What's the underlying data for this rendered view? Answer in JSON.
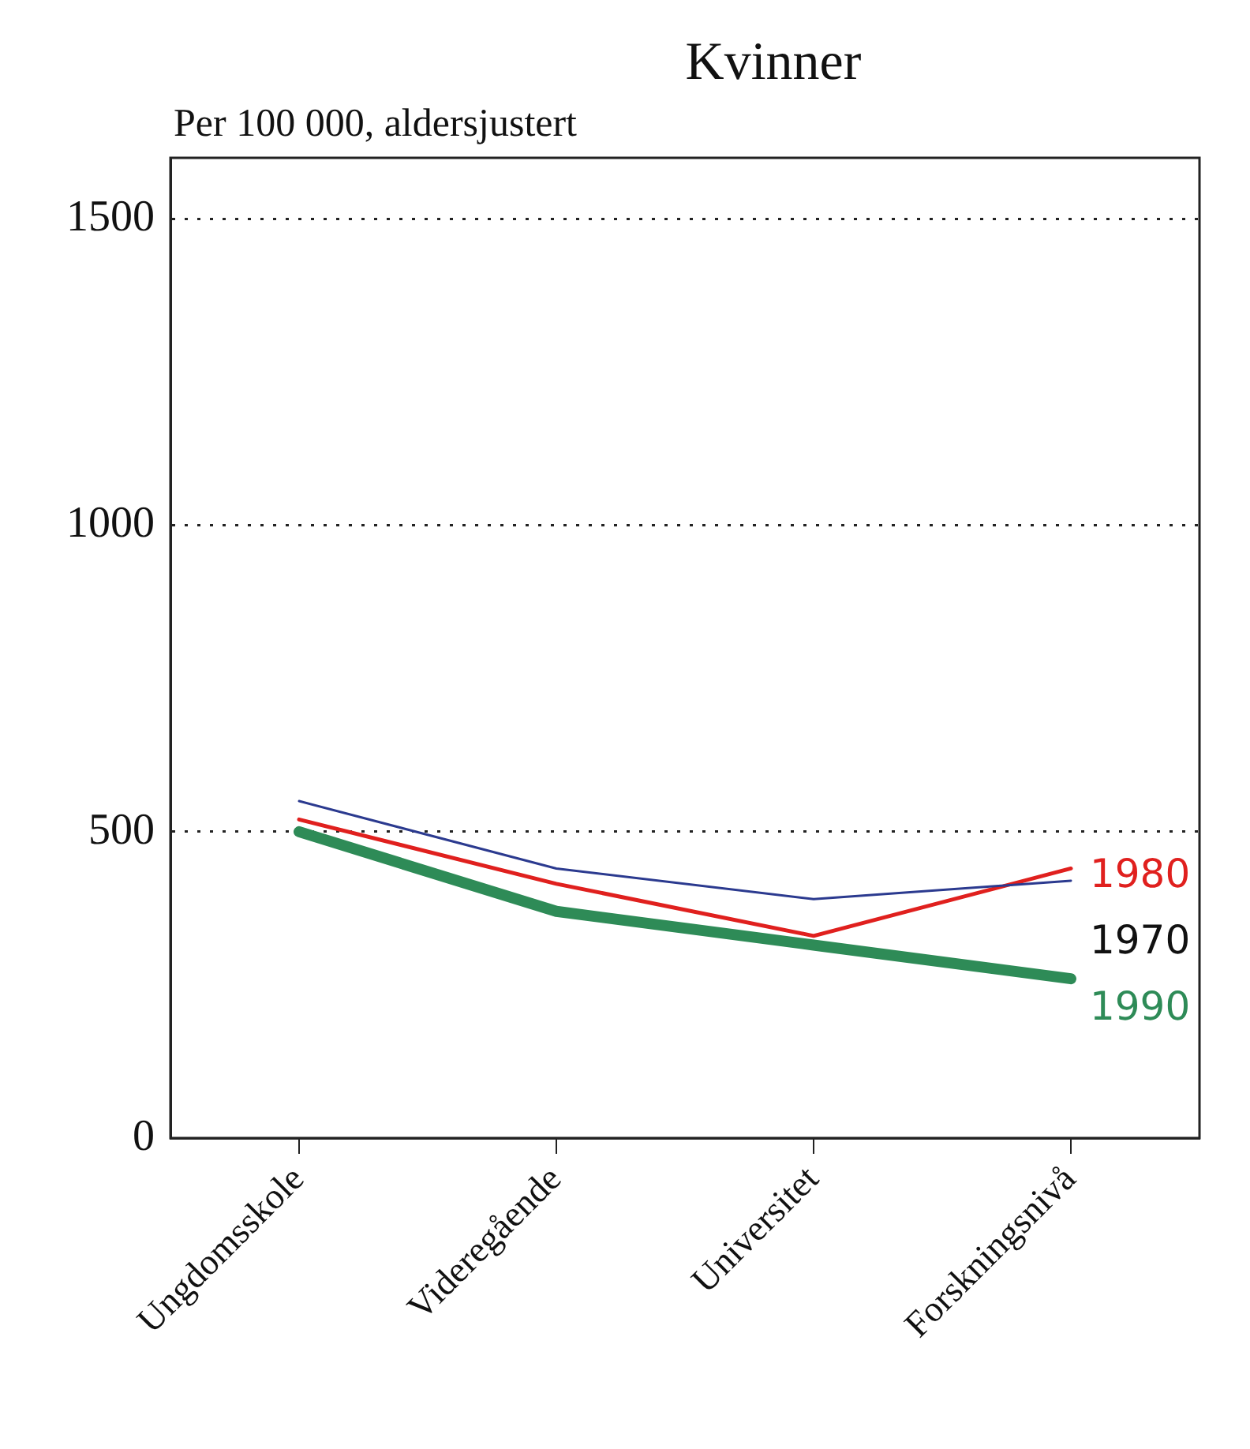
{
  "chart_data": {
    "type": "line",
    "title": "Kvinner",
    "ylabel": "Per 100 000, aldersjustert",
    "categories": [
      "Ungdomsskole",
      "Videregående",
      "Universitet",
      "Forskningsnivå"
    ],
    "series": [
      {
        "name": "1970",
        "color": "#2b3a8f",
        "values": [
          550,
          440,
          390,
          420
        ]
      },
      {
        "name": "1980",
        "color": "#e0201e",
        "values": [
          520,
          415,
          330,
          440
        ]
      },
      {
        "name": "1990",
        "color": "#2e8b57",
        "values": [
          500,
          370,
          315,
          260
        ]
      }
    ],
    "ylim": [
      0,
      1600
    ],
    "yticks": [
      0,
      500,
      1000,
      1500
    ],
    "grid": "y",
    "legend": false,
    "marker": "none",
    "line_style": "solid"
  }
}
